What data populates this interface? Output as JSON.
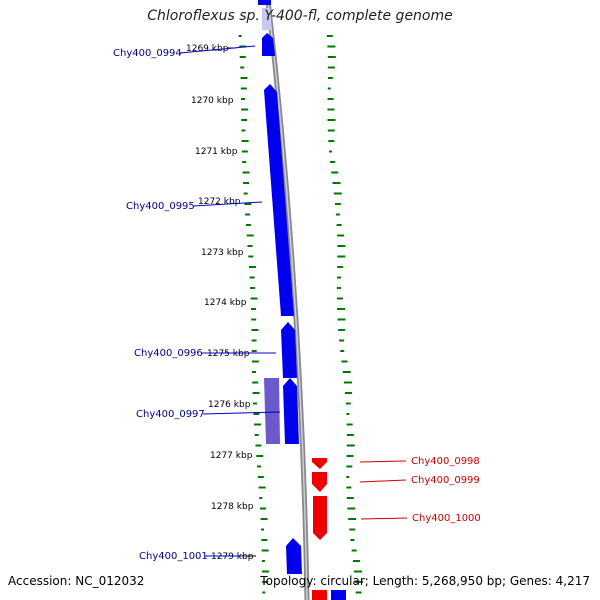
{
  "title": "Chloroflexus sp. Y-400-fl, complete genome",
  "footer": {
    "accession": "Accession: NC_012032",
    "summary": "Topology: circular; Length: 5,268,950 bp; Genes: 4,217"
  },
  "colors": {
    "forward_gene": "#0000ee",
    "forward_gene_faded": "#6a5acd",
    "reverse_gene": "#ee0000",
    "forward_label": "#00008b",
    "reverse_label": "#cc0000",
    "gc_ticks": "#007700",
    "backbone": "#888888"
  },
  "scale_ticks": [
    "1269 kbp",
    "1270 kbp",
    "1271 kbp",
    "1272 kbp",
    "1273 kbp",
    "1274 kbp",
    "1275 kbp",
    "1276 kbp",
    "1277 kbp",
    "1278 kbp",
    "1279 kbp"
  ],
  "gene_labels": [
    {
      "text": "Chy400_0994",
      "strand": "forward"
    },
    {
      "text": "Chy400_0995",
      "strand": "forward"
    },
    {
      "text": "Chy400_0996",
      "strand": "forward"
    },
    {
      "text": "Chy400_0997",
      "strand": "forward"
    },
    {
      "text": "Chy400_0998",
      "strand": "reverse"
    },
    {
      "text": "Chy400_0999",
      "strand": "reverse"
    },
    {
      "text": "Chy400_1000",
      "strand": "reverse"
    },
    {
      "text": "Chy400_1001",
      "strand": "forward"
    }
  ]
}
